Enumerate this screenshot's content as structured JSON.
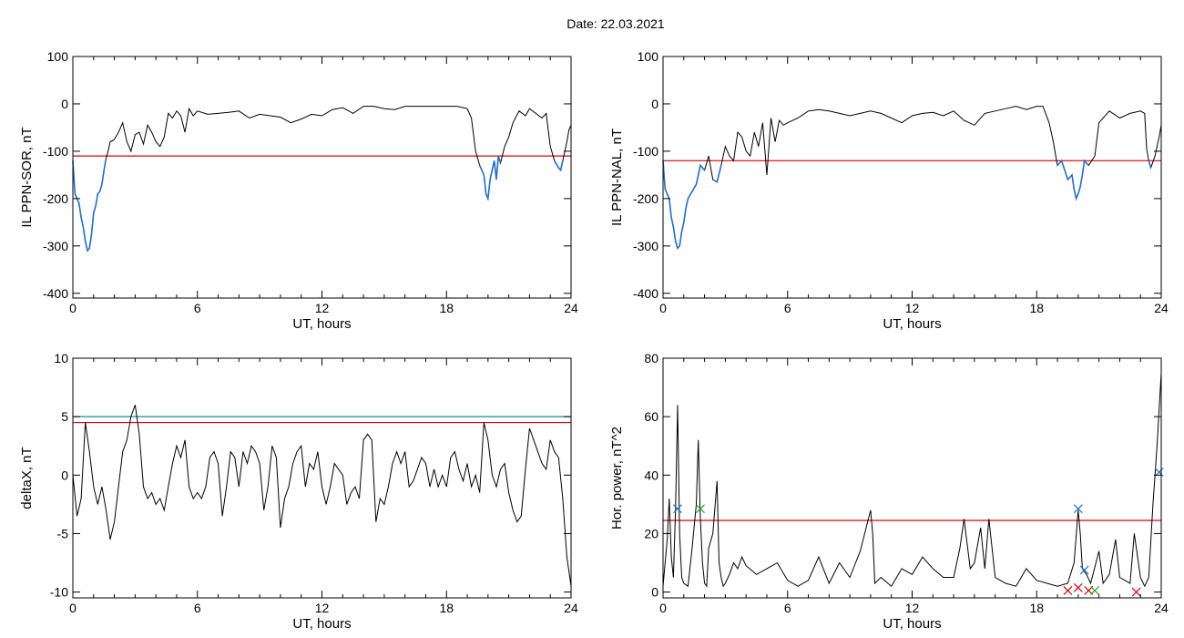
{
  "header": {
    "title": "Date:  22.03.2021"
  },
  "chart_data": [
    {
      "type": "line",
      "xlabel": "UT, hours",
      "ylabel": "IL PPN-SOR, nT",
      "xlim": [
        0,
        24
      ],
      "ylim": [
        -410,
        100
      ],
      "xticks": [
        0,
        6,
        12,
        18,
        24
      ],
      "yticks": [
        100,
        0,
        -100,
        -200,
        -300,
        -400
      ],
      "ytick_labels": [
        "100",
        "0",
        "-100",
        "-200",
        "-300",
        "-400"
      ],
      "colors": {
        "main": "#000000",
        "highlight": "#1f6fd1",
        "threshold": "#e00000"
      },
      "series": [
        {
          "x": [
            0,
            0.1,
            0.2,
            0.3,
            0.4,
            0.5,
            0.6,
            0.7,
            0.8,
            0.9,
            1.0,
            1.1,
            1.2,
            1.3,
            1.4,
            1.5,
            1.6,
            1.7,
            1.8,
            1.9,
            2.0,
            2.2,
            2.4,
            2.6,
            2.8,
            3.0,
            3.2,
            3.4,
            3.6,
            3.8,
            4.0,
            4.2,
            4.4,
            4.6,
            4.8,
            5.0,
            5.2,
            5.4,
            5.6,
            5.8,
            6.0,
            6.5,
            7.0,
            7.5,
            8.0,
            8.5,
            9.0,
            9.5,
            10.0,
            10.5,
            11.0,
            11.5,
            12.0,
            12.5,
            13.0,
            13.5,
            14.0,
            14.5,
            15.0,
            15.5,
            16.0,
            16.5,
            17.0,
            17.5,
            18.0,
            18.5,
            19.0,
            19.2,
            19.4,
            19.6,
            19.8,
            19.9,
            20.0,
            20.1,
            20.2,
            20.3,
            20.4,
            20.5,
            20.6,
            20.8,
            21.0,
            21.2,
            21.5,
            21.8,
            22.0,
            22.3,
            22.6,
            22.8,
            23.0,
            23.2,
            23.4,
            23.5,
            23.6,
            23.7,
            23.8,
            23.9,
            24.0
          ],
          "y": [
            -120,
            -190,
            -200,
            -210,
            -240,
            -260,
            -290,
            -310,
            -305,
            -275,
            -230,
            -215,
            -190,
            -185,
            -170,
            -140,
            -115,
            -100,
            -80,
            -78,
            -75,
            -60,
            -40,
            -80,
            -100,
            -65,
            -60,
            -85,
            -45,
            -60,
            -80,
            -90,
            -70,
            -20,
            -30,
            -15,
            -25,
            -60,
            -10,
            -25,
            -15,
            -22,
            -20,
            -18,
            -15,
            -30,
            -22,
            -25,
            -28,
            -40,
            -32,
            -22,
            -25,
            -12,
            -8,
            -20,
            -5,
            -5,
            -10,
            -12,
            -5,
            -5,
            -5,
            -5,
            -5,
            -5,
            -10,
            -30,
            -100,
            -130,
            -150,
            -190,
            -200,
            -160,
            -140,
            -120,
            -160,
            -110,
            -125,
            -90,
            -70,
            -40,
            -15,
            -25,
            -10,
            -20,
            -30,
            -20,
            -90,
            -120,
            -135,
            -140,
            -120,
            -100,
            -80,
            -55,
            -45
          ]
        }
      ],
      "threshold": -110,
      "highlight_below": -110
    },
    {
      "type": "line",
      "xlabel": "UT, hours",
      "ylabel": "IL PPN-NAL, nT",
      "xlim": [
        0,
        24
      ],
      "ylim": [
        -410,
        100
      ],
      "xticks": [
        0,
        6,
        12,
        18,
        24
      ],
      "yticks": [
        100,
        0,
        -100,
        -200,
        -300,
        -400
      ],
      "ytick_labels": [
        "100",
        "0",
        "-100",
        "-200",
        "-300",
        "-400"
      ],
      "colors": {
        "main": "#000000",
        "highlight": "#1f6fd1",
        "threshold": "#e00000"
      },
      "series": [
        {
          "x": [
            0,
            0.1,
            0.2,
            0.3,
            0.4,
            0.5,
            0.6,
            0.7,
            0.8,
            0.9,
            1.0,
            1.1,
            1.2,
            1.4,
            1.6,
            1.8,
            2.0,
            2.2,
            2.4,
            2.6,
            2.8,
            3.0,
            3.2,
            3.4,
            3.6,
            3.8,
            4.0,
            4.2,
            4.4,
            4.6,
            4.8,
            5.0,
            5.2,
            5.4,
            5.6,
            5.8,
            6.0,
            6.5,
            7.0,
            7.5,
            8.0,
            8.5,
            9.0,
            9.5,
            10.0,
            10.5,
            11.0,
            11.5,
            12.0,
            12.5,
            13.0,
            13.5,
            14.0,
            14.5,
            15.0,
            15.5,
            16.0,
            16.5,
            17.0,
            17.5,
            18.0,
            18.3,
            18.6,
            18.8,
            19.0,
            19.2,
            19.5,
            19.7,
            19.8,
            19.9,
            20.0,
            20.1,
            20.2,
            20.3,
            20.5,
            20.8,
            21.0,
            21.5,
            22.0,
            22.5,
            23.0,
            23.2,
            23.3,
            23.4,
            23.5,
            23.7,
            23.9,
            24.0
          ],
          "y": [
            -120,
            -180,
            -190,
            -200,
            -240,
            -260,
            -290,
            -305,
            -300,
            -270,
            -250,
            -220,
            -200,
            -185,
            -170,
            -130,
            -140,
            -110,
            -160,
            -165,
            -130,
            -90,
            -110,
            -120,
            -60,
            -70,
            -100,
            -110,
            -60,
            -90,
            -40,
            -150,
            -30,
            -80,
            -35,
            -45,
            -40,
            -30,
            -15,
            -12,
            -15,
            -20,
            -25,
            -20,
            -15,
            -20,
            -30,
            -40,
            -25,
            -20,
            -18,
            -25,
            -15,
            -35,
            -45,
            -20,
            -15,
            -10,
            -5,
            -12,
            -5,
            -5,
            -40,
            -80,
            -130,
            -120,
            -160,
            -150,
            -180,
            -200,
            -190,
            -175,
            -150,
            -120,
            -130,
            -110,
            -40,
            -15,
            -30,
            -20,
            -15,
            -20,
            -95,
            -120,
            -135,
            -110,
            -70,
            -45
          ]
        }
      ],
      "threshold": -120,
      "highlight_below": -120
    },
    {
      "type": "line",
      "xlabel": "UT, hours",
      "ylabel": "deltaX, nT",
      "xlim": [
        0,
        24
      ],
      "ylim": [
        -10.5,
        10
      ],
      "xticks": [
        0,
        6,
        12,
        18,
        24
      ],
      "yticks": [
        10,
        5,
        0,
        -5,
        -10
      ],
      "ytick_labels": [
        "10",
        "5",
        "0",
        "-5",
        "-10"
      ],
      "colors": {
        "main": "#000000",
        "threshold_red": "#e00000",
        "threshold_teal": "#1a8a8a"
      },
      "series": [
        {
          "x": [
            0,
            0.2,
            0.4,
            0.6,
            0.8,
            1.0,
            1.2,
            1.4,
            1.6,
            1.8,
            2.0,
            2.2,
            2.4,
            2.6,
            2.8,
            3.0,
            3.2,
            3.4,
            3.6,
            3.8,
            4.0,
            4.2,
            4.4,
            4.6,
            4.8,
            5.0,
            5.2,
            5.4,
            5.6,
            5.8,
            6.0,
            6.2,
            6.4,
            6.6,
            6.8,
            7.0,
            7.2,
            7.4,
            7.6,
            7.8,
            8.0,
            8.2,
            8.4,
            8.6,
            8.8,
            9.0,
            9.2,
            9.4,
            9.6,
            9.8,
            10.0,
            10.2,
            10.4,
            10.6,
            10.8,
            11.0,
            11.2,
            11.4,
            11.6,
            11.8,
            12.0,
            12.2,
            12.4,
            12.6,
            12.8,
            13.0,
            13.2,
            13.4,
            13.6,
            13.8,
            14.0,
            14.2,
            14.4,
            14.6,
            14.8,
            15.0,
            15.2,
            15.4,
            15.6,
            15.8,
            16.0,
            16.2,
            16.4,
            16.6,
            16.8,
            17.0,
            17.2,
            17.4,
            17.6,
            17.8,
            18.0,
            18.2,
            18.4,
            18.6,
            18.8,
            19.0,
            19.2,
            19.4,
            19.6,
            19.8,
            20.0,
            20.2,
            20.4,
            20.6,
            20.8,
            21.0,
            21.2,
            21.4,
            21.6,
            21.8,
            22.0,
            22.2,
            22.4,
            22.6,
            22.8,
            23.0,
            23.2,
            23.4,
            23.6,
            23.8,
            24.0
          ],
          "y": [
            0,
            -3.5,
            -2.0,
            4.5,
            2.0,
            -1.0,
            -2.5,
            -1.0,
            -3.0,
            -5.5,
            -4.0,
            -1.0,
            2.0,
            3.0,
            5.0,
            6.0,
            3.5,
            -1.0,
            -2.0,
            -1.5,
            -2.5,
            -2.0,
            -3.0,
            -1.0,
            1.0,
            2.5,
            1.5,
            3.0,
            -1.0,
            -2.0,
            -1.5,
            -2.0,
            -1.0,
            1.5,
            2.0,
            1.0,
            -3.5,
            -1.0,
            2.0,
            1.5,
            -1.0,
            2.0,
            1.0,
            2.5,
            2.0,
            1.0,
            -3.0,
            -1.0,
            2.5,
            1.5,
            -4.5,
            -2.0,
            -1.0,
            1.0,
            2.0,
            2.5,
            -1.0,
            1.0,
            0.5,
            2.0,
            -1.0,
            -2.5,
            -1.0,
            1.0,
            0.5,
            0.0,
            -2.5,
            -1.5,
            -1.0,
            -2.0,
            3.0,
            3.5,
            3.0,
            -4.0,
            -2.0,
            -2.5,
            -1.0,
            1.0,
            2.0,
            1.0,
            2.0,
            -1.0,
            -0.5,
            0.5,
            1.5,
            1.0,
            -1.0,
            0.5,
            -1.0,
            0.0,
            -1.0,
            1.5,
            2.0,
            0.5,
            -0.5,
            1.0,
            -1.0,
            0.0,
            -1.5,
            4.5,
            3.0,
            0.0,
            -1.0,
            0.5,
            1.0,
            -1.5,
            -3.0,
            -4.0,
            -3.5,
            0.5,
            4.0,
            3.0,
            2.0,
            1.0,
            0.5,
            3.0,
            2.0,
            1.5,
            -2.0,
            -7.0,
            -9.5
          ]
        }
      ],
      "threshold_red": 4.5,
      "threshold_teal": 5.0
    },
    {
      "type": "line",
      "xlabel": "UT, hours",
      "ylabel": "Hor. power, nT^2",
      "xlim": [
        0,
        24
      ],
      "ylim": [
        -2,
        80
      ],
      "xticks": [
        0,
        6,
        12,
        18,
        24
      ],
      "yticks": [
        80,
        60,
        40,
        20,
        0
      ],
      "ytick_labels": [
        "80",
        "60",
        "40",
        "20",
        "0"
      ],
      "colors": {
        "main": "#000000",
        "threshold": "#e00000",
        "marker_blue": "#1f6fd1",
        "marker_green": "#2aa02a",
        "marker_red": "#e00000"
      },
      "series": [
        {
          "x": [
            0,
            0.2,
            0.3,
            0.4,
            0.5,
            0.6,
            0.7,
            0.8,
            0.9,
            1.0,
            1.2,
            1.4,
            1.6,
            1.7,
            1.8,
            1.9,
            2.0,
            2.1,
            2.2,
            2.4,
            2.6,
            2.7,
            2.8,
            2.9,
            3.0,
            3.2,
            3.4,
            3.6,
            3.8,
            4.0,
            4.5,
            5.0,
            5.5,
            6.0,
            6.5,
            7.0,
            7.5,
            8.0,
            8.5,
            9.0,
            9.5,
            10.0,
            10.1,
            10.2,
            10.5,
            11.0,
            11.5,
            12.0,
            12.5,
            13.0,
            13.5,
            14.0,
            14.3,
            14.5,
            14.8,
            15.0,
            15.3,
            15.5,
            15.7,
            16.0,
            16.5,
            17.0,
            17.5,
            18.0,
            18.5,
            19.0,
            19.5,
            19.8,
            20.0,
            20.1,
            20.2,
            20.4,
            20.6,
            21.0,
            21.2,
            21.5,
            21.8,
            22.0,
            22.5,
            22.7,
            23.0,
            23.2,
            23.4,
            23.6,
            23.8,
            24.0
          ],
          "y": [
            2,
            18,
            32,
            12,
            5,
            28,
            64,
            20,
            5,
            3,
            2,
            15,
            30,
            52,
            25,
            10,
            3,
            2,
            15,
            20,
            38,
            10,
            5,
            2,
            3,
            6,
            10,
            8,
            12,
            9,
            6,
            8,
            10,
            4,
            2,
            4,
            12,
            3,
            10,
            5,
            14,
            28,
            20,
            3,
            5,
            2,
            8,
            6,
            12,
            8,
            5,
            5,
            15,
            25,
            8,
            10,
            22,
            8,
            25,
            5,
            3,
            2,
            8,
            4,
            3,
            2,
            3,
            10,
            28,
            20,
            8,
            6,
            3,
            14,
            3,
            6,
            18,
            5,
            3,
            20,
            5,
            2,
            5,
            30,
            50,
            75
          ]
        }
      ],
      "threshold": 24.5,
      "markers": [
        {
          "x": 0.7,
          "y": 28.5,
          "symbol": "x",
          "color_key": "marker_blue"
        },
        {
          "x": 1.8,
          "y": 28.5,
          "symbol": "x",
          "color_key": "marker_green"
        },
        {
          "x": 20.0,
          "y": 28.5,
          "symbol": "x",
          "color_key": "marker_blue"
        },
        {
          "x": 20.3,
          "y": 7.5,
          "symbol": "x",
          "color_key": "marker_blue"
        },
        {
          "x": 19.5,
          "y": 0.5,
          "symbol": "x",
          "color_key": "marker_red"
        },
        {
          "x": 20.0,
          "y": 1.5,
          "symbol": "x",
          "color_key": "marker_red"
        },
        {
          "x": 20.5,
          "y": 0.5,
          "symbol": "x",
          "color_key": "marker_red"
        },
        {
          "x": 20.8,
          "y": 0.5,
          "symbol": "x",
          "color_key": "marker_green"
        },
        {
          "x": 22.8,
          "y": 0.0,
          "symbol": "x",
          "color_key": "marker_red"
        },
        {
          "x": 23.9,
          "y": 41.0,
          "symbol": "x",
          "color_key": "marker_blue"
        }
      ]
    }
  ]
}
